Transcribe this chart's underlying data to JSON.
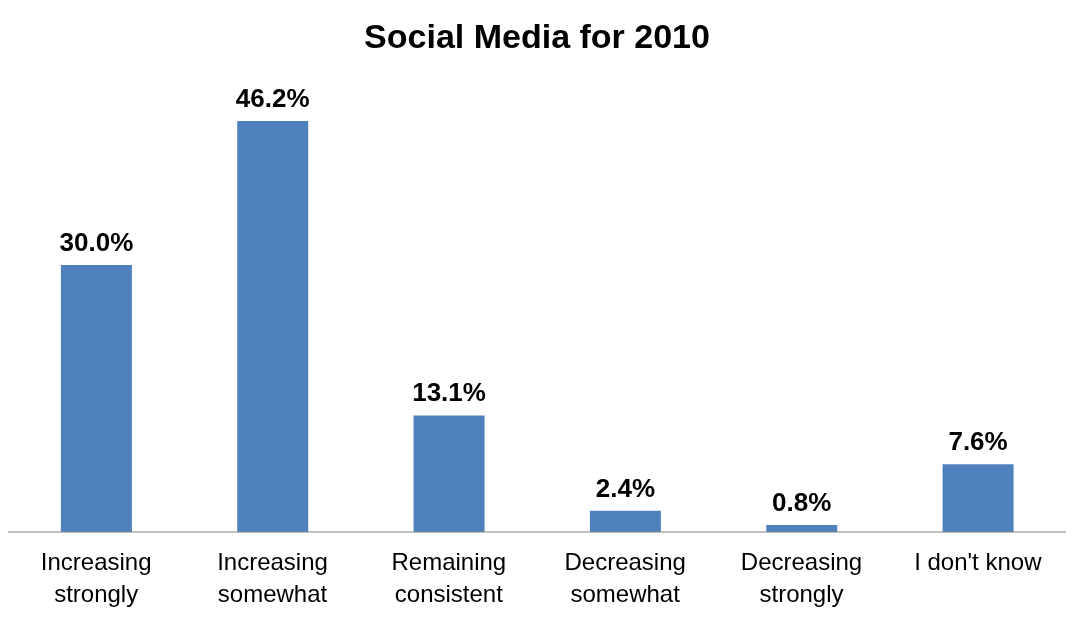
{
  "chart_data": {
    "type": "bar",
    "title": "Social Media for 2010",
    "categories": [
      "Increasing strongly",
      "Increasing somewhat",
      "Remaining consistent",
      "Decreasing somewhat",
      "Decreasing strongly",
      "I don't know"
    ],
    "values": [
      30.0,
      46.2,
      13.1,
      2.4,
      0.8,
      7.6
    ],
    "value_labels": [
      "30.0%",
      "46.2%",
      "13.1%",
      "2.4%",
      "0.8%",
      "7.6%"
    ],
    "color": "#4f81bd",
    "tick_labels": "x",
    "grid": false,
    "legend": false
  }
}
